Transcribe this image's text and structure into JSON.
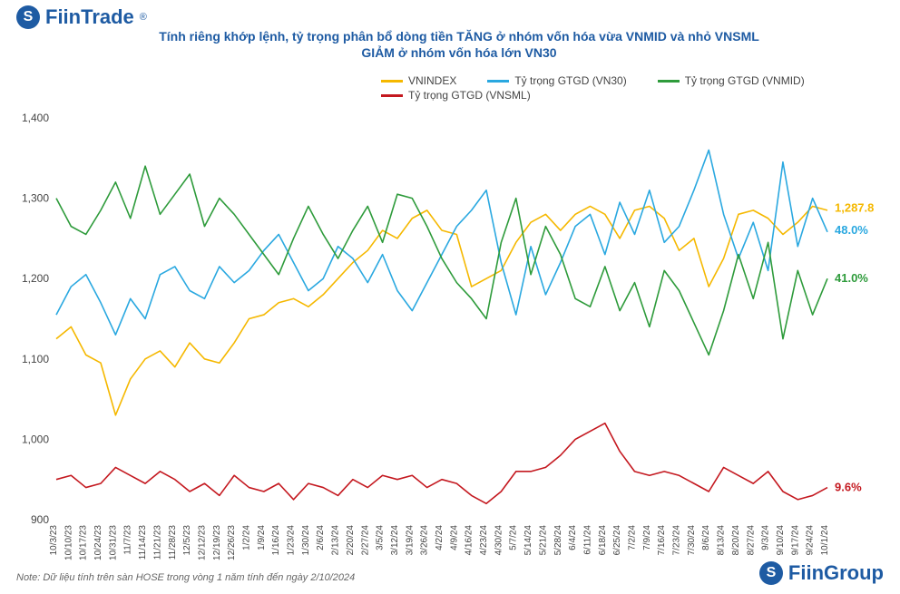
{
  "brand_top": "FiinTrade",
  "brand_bot": "FiinGroup",
  "title_line1": "Tính riêng khớp lệnh, tỷ trọng phân bổ dòng tiền TĂNG ở nhóm vốn hóa vừa VNMID và nhỏ VNSML",
  "title_line2": "GIẢM ở nhóm vốn hóa lớn VN30",
  "title_fontsize": 14,
  "note": "Note: Dữ liệu tính trên sàn HOSE trong vòng 1 năm tính đến ngày 2/10/2024",
  "chart": {
    "type": "line",
    "background_color": "#ffffff",
    "y_axis": {
      "min": 900,
      "max": 1400,
      "ticks": [
        900,
        1000,
        1100,
        1200,
        1300,
        1400
      ],
      "fontsize": 12,
      "color": "#444444"
    },
    "x_axis": {
      "labels": [
        "10/3/23",
        "10/10/23",
        "10/17/23",
        "10/24/23",
        "10/31/23",
        "11/7/23",
        "11/14/23",
        "11/21/23",
        "11/28/23",
        "12/5/23",
        "12/12/23",
        "12/19/23",
        "12/26/23",
        "1/2/24",
        "1/9/24",
        "1/16/24",
        "1/23/24",
        "1/30/24",
        "2/6/24",
        "2/13/24",
        "2/20/24",
        "2/27/24",
        "3/5/24",
        "3/12/24",
        "3/19/24",
        "3/26/24",
        "4/2/24",
        "4/9/24",
        "4/16/24",
        "4/23/24",
        "4/30/24",
        "5/7/24",
        "5/14/24",
        "5/21/24",
        "5/28/24",
        "6/4/24",
        "6/11/24",
        "6/18/24",
        "6/25/24",
        "7/2/24",
        "7/9/24",
        "7/16/24",
        "7/23/24",
        "7/30/24",
        "8/6/24",
        "8/13/24",
        "8/20/24",
        "8/27/24",
        "9/3/24",
        "9/10/24",
        "9/17/24",
        "9/24/24",
        "10/1/24"
      ],
      "rotation": -90,
      "fontsize": 10,
      "color": "#444444"
    },
    "legend": {
      "items": [
        {
          "label": "VNINDEX",
          "color": "#f5b800"
        },
        {
          "label": "Tỷ trọng GTGD (VN30)",
          "color": "#2aa8e0"
        },
        {
          "label": "Tỷ trọng GTGD (VNMID)",
          "color": "#2e9b3b"
        },
        {
          "label": "Tỷ trọng GTGD (VNSML)",
          "color": "#c4181f"
        }
      ],
      "fontsize": 12
    },
    "end_labels": [
      {
        "text": "1,287.8",
        "color": "#f5b800",
        "y": 1287.8
      },
      {
        "text": "48.0%",
        "color": "#2aa8e0",
        "y": 1260
      },
      {
        "text": "41.0%",
        "color": "#2e9b3b",
        "y": 1200
      },
      {
        "text": "9.6%",
        "color": "#c4181f",
        "y": 940
      }
    ],
    "line_width": 1.6,
    "series": {
      "VNINDEX": {
        "color": "#f5b800",
        "data": [
          1125,
          1140,
          1105,
          1095,
          1030,
          1075,
          1100,
          1110,
          1090,
          1120,
          1100,
          1095,
          1120,
          1150,
          1155,
          1170,
          1175,
          1165,
          1180,
          1200,
          1220,
          1235,
          1260,
          1250,
          1275,
          1285,
          1260,
          1255,
          1190,
          1200,
          1210,
          1245,
          1270,
          1280,
          1260,
          1280,
          1290,
          1280,
          1250,
          1285,
          1290,
          1275,
          1235,
          1250,
          1190,
          1225,
          1280,
          1285,
          1275,
          1255,
          1270,
          1290,
          1285
        ],
        "end_value": 1287.8
      },
      "VN30": {
        "color": "#2aa8e0",
        "data": [
          1155,
          1190,
          1205,
          1170,
          1130,
          1175,
          1150,
          1205,
          1215,
          1185,
          1175,
          1215,
          1195,
          1210,
          1235,
          1255,
          1220,
          1185,
          1200,
          1240,
          1225,
          1195,
          1230,
          1185,
          1160,
          1195,
          1230,
          1265,
          1285,
          1310,
          1220,
          1155,
          1240,
          1180,
          1220,
          1265,
          1280,
          1230,
          1295,
          1255,
          1310,
          1245,
          1265,
          1310,
          1360,
          1280,
          1225,
          1270,
          1210,
          1345,
          1240,
          1300,
          1258
        ],
        "end_pct": "48.0%"
      },
      "VNMID": {
        "color": "#2e9b3b",
        "data": [
          1300,
          1265,
          1255,
          1285,
          1320,
          1275,
          1340,
          1280,
          1305,
          1330,
          1265,
          1300,
          1280,
          1255,
          1230,
          1205,
          1250,
          1290,
          1255,
          1225,
          1260,
          1290,
          1245,
          1305,
          1300,
          1265,
          1225,
          1195,
          1175,
          1150,
          1245,
          1300,
          1205,
          1265,
          1230,
          1175,
          1165,
          1215,
          1160,
          1195,
          1140,
          1210,
          1185,
          1145,
          1105,
          1160,
          1230,
          1175,
          1245,
          1125,
          1210,
          1155,
          1200
        ],
        "end_pct": "41.0%"
      },
      "VNSML": {
        "color": "#c4181f",
        "data": [
          950,
          955,
          940,
          945,
          965,
          955,
          945,
          960,
          950,
          935,
          945,
          930,
          955,
          940,
          935,
          945,
          925,
          945,
          940,
          930,
          950,
          940,
          955,
          950,
          955,
          940,
          950,
          945,
          930,
          920,
          935,
          960,
          960,
          965,
          980,
          1000,
          1010,
          1020,
          985,
          960,
          955,
          960,
          955,
          945,
          935,
          965,
          955,
          945,
          960,
          935,
          925,
          930,
          940
        ],
        "end_pct": "9.6%"
      }
    }
  }
}
